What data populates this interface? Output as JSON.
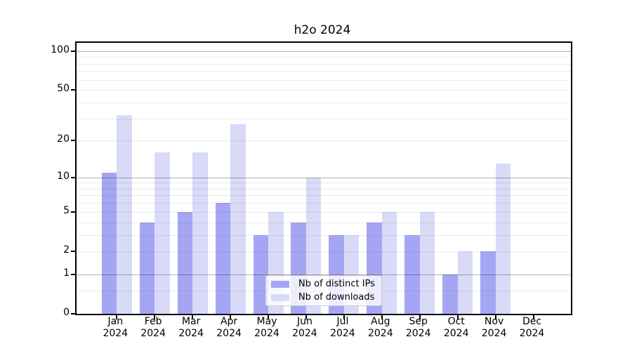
{
  "chart_data": {
    "type": "bar",
    "title": "h2o 2024",
    "categories": [
      "Jan 2024",
      "Feb 2024",
      "Mar 2024",
      "Apr 2024",
      "May 2024",
      "Jun 2024",
      "Jul 2024",
      "Aug 2024",
      "Sep 2024",
      "Oct 2024",
      "Nov 2024",
      "Dec 2024"
    ],
    "x_tick_line1": [
      "Jan",
      "Feb",
      "Mar",
      "Apr",
      "May",
      "Jun",
      "Jul",
      "Aug",
      "Sep",
      "Oct",
      "Nov",
      "Dec"
    ],
    "x_tick_line2": [
      "2024",
      "2024",
      "2024",
      "2024",
      "2024",
      "2024",
      "2024",
      "2024",
      "2024",
      "2024",
      "2024",
      "2024"
    ],
    "series": [
      {
        "name": "Nb of distinct IPs",
        "color": "#a5a6f3",
        "values": [
          11,
          4,
          5,
          6,
          3,
          4,
          3,
          4,
          3,
          1,
          2,
          0
        ]
      },
      {
        "name": "Nb of downloads",
        "color": "#d9daf8",
        "values": [
          32,
          16,
          16,
          27,
          5,
          10,
          3,
          5,
          5,
          2,
          13,
          0
        ]
      }
    ],
    "xlabel": "",
    "ylabel": "",
    "yscale": "log1p",
    "ylim": [
      0,
      116
    ],
    "y_tick_values": [
      0,
      1,
      2,
      5,
      10,
      20,
      50,
      100
    ],
    "y_tick_labels": [
      "0",
      "1",
      "2",
      "5",
      "10",
      "20",
      "50",
      "100"
    ],
    "y_major_gridlines": [
      1,
      10,
      100
    ],
    "y_minor_gridlines": [
      0.5,
      2,
      3,
      4,
      5,
      6,
      7,
      8,
      9,
      20,
      30,
      40,
      50,
      60,
      70,
      80,
      90
    ],
    "grid": "on",
    "legend_position": "lower center"
  }
}
